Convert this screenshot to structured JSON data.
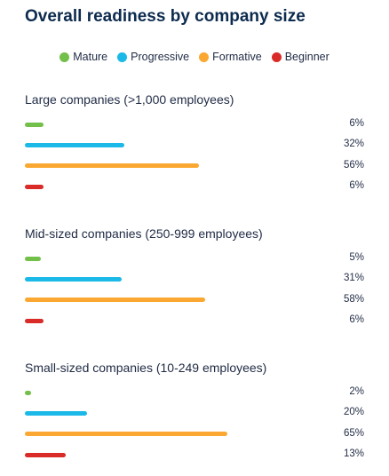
{
  "chart_data": {
    "type": "bar",
    "orientation": "horizontal",
    "title": "Overall readiness by company size",
    "legend_position": "top",
    "series": [
      {
        "name": "Mature",
        "color": "#72c04a"
      },
      {
        "name": "Progressive",
        "color": "#1ab9e8"
      },
      {
        "name": "Formative",
        "color": "#faa832"
      },
      {
        "name": "Beginner",
        "color": "#d92b27"
      }
    ],
    "groups": [
      {
        "title": "Large companies (>1,000 employees)",
        "values": [
          6,
          32,
          56,
          6
        ],
        "labels": [
          "6%",
          "32%",
          "56%",
          "6%"
        ]
      },
      {
        "title": "Mid-sized companies (250-999 employees)",
        "values": [
          5,
          31,
          58,
          6
        ],
        "labels": [
          "5%",
          "31%",
          "58%",
          "6%"
        ]
      },
      {
        "title": "Small-sized companies (10-249 employees)",
        "values": [
          2,
          20,
          65,
          13
        ],
        "labels": [
          "2%",
          "20%",
          "65%",
          "13%"
        ]
      }
    ],
    "xlim": [
      0,
      100
    ],
    "grid": false
  }
}
